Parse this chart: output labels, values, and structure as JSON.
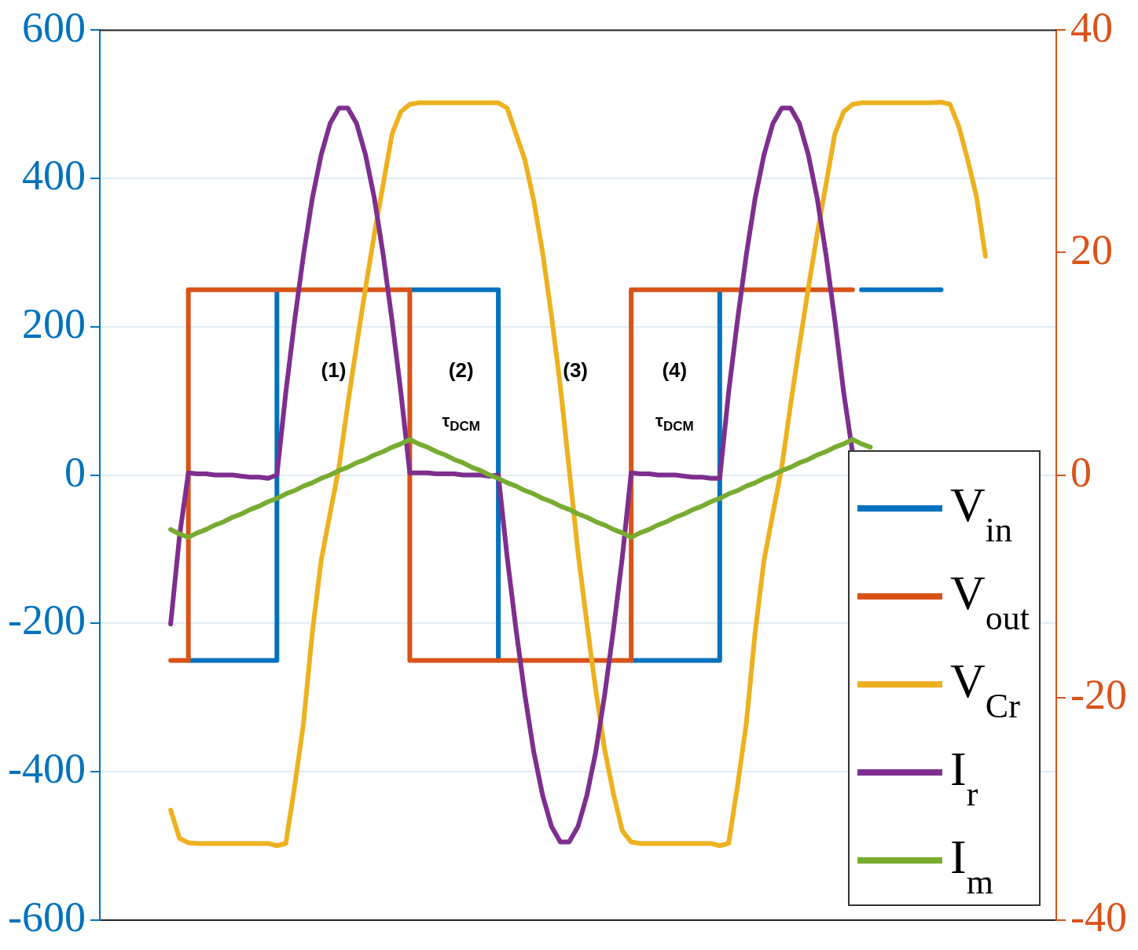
{
  "chart_data": {
    "type": "line",
    "categories": [
      null,
      null,
      null,
      null,
      null,
      null,
      null,
      null,
      null,
      null,
      null,
      null,
      null,
      null,
      null,
      null,
      null,
      null,
      null,
      null,
      null,
      null,
      null,
      null,
      null,
      null,
      null,
      null,
      null,
      null,
      null,
      null,
      null,
      null,
      null,
      null,
      null,
      null,
      null,
      null,
      null,
      null,
      null,
      null,
      null,
      null,
      null,
      null,
      null,
      null,
      null,
      null,
      null,
      null,
      null,
      null,
      null,
      null,
      null,
      null,
      null,
      null,
      null,
      null,
      null,
      null,
      null,
      null,
      null,
      null,
      null,
      null,
      null,
      null,
      null,
      null,
      null,
      null,
      null,
      null,
      null,
      null,
      null,
      null,
      null,
      null,
      null,
      null,
      null,
      null,
      null,
      null,
      null,
      null,
      null,
      null,
      null,
      null,
      null,
      null,
      null,
      null,
      null,
      null,
      null,
      null,
      null,
      null,
      null
    ],
    "series": [
      {
        "name": "V$_{in}$",
        "type": "step",
        "color": "#0072bd",
        "values": [
          null,
          null,
          null,
          null,
          null,
          null,
          null,
          null,
          null,
          null,
          -250,
          -250,
          -250,
          -250,
          -250,
          -250,
          -250,
          -250,
          -250,
          -250,
          250,
          null,
          null,
          null,
          null,
          null,
          null,
          null,
          null,
          null,
          null,
          null,
          null,
          null,
          null,
          250,
          250,
          250,
          250,
          250,
          250,
          250,
          250,
          250,
          250,
          -250,
          null,
          null,
          null,
          null,
          null,
          null,
          null,
          null,
          null,
          null,
          null,
          null,
          null,
          null,
          -250,
          -250,
          -250,
          -250,
          -250,
          -250,
          -250,
          -250,
          -250,
          -250,
          250,
          null,
          null,
          null,
          null,
          null,
          null,
          null,
          null,
          null,
          null,
          null,
          null,
          null,
          null,
          null,
          250,
          250,
          250,
          250,
          250,
          250,
          250,
          250,
          250,
          250,
          null,
          null,
          null,
          null,
          null,
          null,
          null,
          null,
          null,
          null,
          null,
          null,
          null
        ]
      },
      {
        "name": "V$_{out}$",
        "type": "step",
        "color": "#d95319",
        "values": [
          null,
          null,
          null,
          null,
          null,
          null,
          null,
          null,
          -250,
          -250,
          250,
          250,
          250,
          250,
          250,
          250,
          250,
          250,
          250,
          250,
          250,
          250,
          250,
          250,
          250,
          250,
          250,
          250,
          250,
          250,
          250,
          250,
          250,
          250,
          250,
          -250,
          -250,
          -250,
          -250,
          -250,
          -250,
          -250,
          -250,
          -250,
          -250,
          -250,
          -250,
          -250,
          -250,
          -250,
          -250,
          -250,
          -250,
          -250,
          -250,
          -250,
          -250,
          -250,
          -250,
          -250,
          250,
          250,
          250,
          250,
          250,
          250,
          250,
          250,
          250,
          250,
          250,
          250,
          250,
          250,
          250,
          250,
          250,
          250,
          250,
          250,
          250,
          250,
          250,
          250,
          250,
          250,
          null,
          null,
          null,
          null,
          null,
          null,
          null,
          null,
          null,
          null,
          null,
          null,
          null,
          null,
          null,
          null,
          null,
          null,
          null,
          null,
          null,
          null,
          null
        ]
      },
      {
        "name": "V$_{Cr}$",
        "type": "line",
        "color": "#edb120",
        "values": [
          null,
          null,
          null,
          null,
          null,
          null,
          null,
          null,
          -452,
          -490,
          -496,
          -497,
          -497,
          -497,
          -497,
          -497,
          -497,
          -497,
          -497,
          -497,
          -500,
          -497,
          -420,
          -335,
          -212,
          -115,
          -52,
          10,
          95,
          175,
          252,
          325,
          392,
          460,
          490,
          500,
          502,
          502,
          502,
          502,
          502,
          502,
          502,
          502,
          502,
          502,
          495,
          460,
          425,
          370,
          300,
          215,
          120,
          8,
          -105,
          -200,
          -290,
          -370,
          -430,
          -480,
          -495,
          -497,
          -497,
          -497,
          -497,
          -497,
          -497,
          -497,
          -497,
          -497,
          -500,
          -497,
          -420,
          -335,
          -212,
          -115,
          -52,
          10,
          95,
          175,
          252,
          325,
          392,
          460,
          490,
          500,
          502,
          502,
          502,
          502,
          502,
          502,
          502,
          502,
          502,
          503,
          500,
          470,
          425,
          375,
          295,
          null,
          null,
          null,
          null,
          null,
          null,
          null,
          null
        ]
      },
      {
        "name": "I$_{r}$",
        "type": "line",
        "axis": "y2",
        "color": "#7e2f8e",
        "values": [
          null,
          null,
          null,
          null,
          null,
          null,
          null,
          null,
          -13.4,
          -5.5,
          0.2,
          0.1,
          0.1,
          0,
          0,
          0,
          -0.1,
          -0.2,
          -0.2,
          -0.3,
          0,
          7.4,
          13.9,
          19.8,
          24.9,
          28.8,
          31.6,
          33.0,
          33.0,
          31.6,
          28.8,
          24.9,
          19.8,
          13.9,
          7.4,
          0.2,
          0.2,
          0.2,
          0.1,
          0.1,
          0.1,
          0,
          0,
          0,
          -0.1,
          0,
          -7.4,
          -13.9,
          -19.8,
          -24.9,
          -28.8,
          -31.6,
          -33.0,
          -33.0,
          -31.6,
          -28.8,
          -24.9,
          -19.8,
          -13.9,
          -7.4,
          0.2,
          0.1,
          0.1,
          0,
          0,
          0,
          -0.1,
          -0.2,
          -0.2,
          -0.3,
          -0.3,
          7.4,
          13.9,
          19.8,
          24.9,
          28.8,
          31.6,
          33.0,
          33.0,
          31.6,
          28.8,
          24.9,
          19.8,
          13.9,
          7.4,
          2.0,
          null,
          null,
          null,
          null,
          null,
          null,
          null,
          null,
          null,
          null,
          null,
          null,
          null,
          null,
          null,
          null,
          null,
          null,
          null,
          null,
          null,
          null,
          null
        ]
      },
      {
        "name": "I$_{m}$",
        "type": "line",
        "axis": "y2",
        "color": "#77ac30",
        "values": [
          null,
          null,
          null,
          null,
          null,
          null,
          null,
          null,
          -4.9,
          -5.3,
          -5.6,
          -5.2,
          -4.9,
          -4.5,
          -4.2,
          -3.8,
          -3.5,
          -3.1,
          -2.8,
          -2.4,
          -2.1,
          -1.7,
          -1.4,
          -1.0,
          -0.7,
          -0.3,
          0.0,
          0.4,
          0.7,
          1.1,
          1.4,
          1.8,
          2.1,
          2.5,
          2.8,
          3.2,
          2.8,
          2.5,
          2.1,
          1.8,
          1.4,
          1.1,
          0.7,
          0.4,
          0.0,
          -0.3,
          -0.7,
          -1.0,
          -1.4,
          -1.7,
          -2.1,
          -2.4,
          -2.8,
          -3.1,
          -3.5,
          -3.8,
          -4.2,
          -4.5,
          -4.9,
          -5.2,
          -5.6,
          -5.2,
          -4.9,
          -4.5,
          -4.2,
          -3.8,
          -3.5,
          -3.1,
          -2.8,
          -2.4,
          -2.1,
          -1.7,
          -1.4,
          -1.0,
          -0.7,
          -0.3,
          0.0,
          0.4,
          0.7,
          1.1,
          1.4,
          1.8,
          2.1,
          2.5,
          2.8,
          3.2,
          2.8,
          2.5,
          null,
          null,
          null,
          null,
          null,
          null,
          null,
          null,
          null,
          null,
          null,
          null,
          null,
          null,
          null,
          null,
          null,
          null,
          null,
          null,
          null
        ]
      }
    ],
    "ylim": [
      -600,
      600
    ],
    "yticks": [
      -600,
      -400,
      -200,
      0,
      200,
      400,
      600
    ],
    "y2lim": [
      -40,
      40
    ],
    "y2ticks": [
      -40,
      -20,
      0,
      20,
      40
    ],
    "grid": "y",
    "legend": "bottom right",
    "annotations": [
      "(1)",
      "(2)",
      "(3)",
      "(4)",
      "τ$_{DCM}$",
      "τ$_{DCM}$"
    ]
  }
}
